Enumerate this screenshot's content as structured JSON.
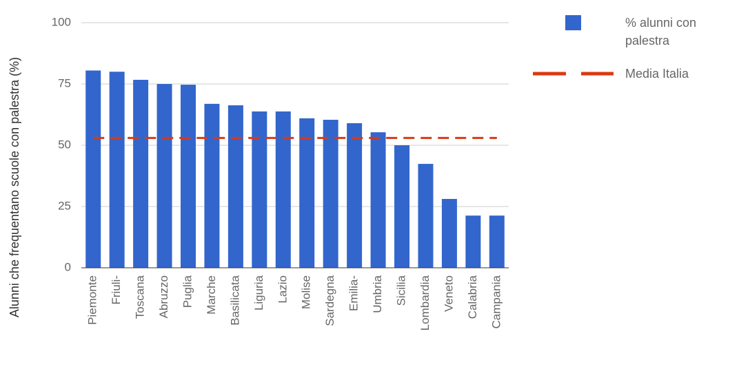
{
  "chart_data": {
    "type": "bar",
    "y_label": "Alunni che frequentano scuole con palestra (%)",
    "categories": [
      "Piemonte",
      "Friuli-",
      "Toscana",
      "Abruzzo",
      "Puglia",
      "Marche",
      "Basilicata",
      "Liguria",
      "Lazio",
      "Molise",
      "Sardegna",
      "Emilia-",
      "Umbria",
      "Sicilia",
      "Lombardia",
      "Veneto",
      "Calabria",
      "Campania"
    ],
    "series": [
      {
        "name": "% alunni con palestra",
        "type": "bar",
        "color": "#3366cc",
        "values": [
          80.5,
          80,
          76.7,
          75,
          74.7,
          66.9,
          66.3,
          63.8,
          63.8,
          61,
          60.4,
          59,
          55.3,
          50,
          42.4,
          28.1,
          21.3,
          21.3
        ]
      },
      {
        "name": "Media Italia",
        "type": "line",
        "color": "#dc3912",
        "values": [
          53,
          53,
          53,
          53,
          53,
          53,
          53,
          53,
          53,
          53,
          53,
          53,
          53,
          53,
          53,
          53,
          53,
          53
        ]
      }
    ],
    "ylim": [
      0,
      100
    ],
    "yticks": [
      0,
      25,
      50,
      75,
      100
    ],
    "grid": true,
    "legend": "right"
  }
}
